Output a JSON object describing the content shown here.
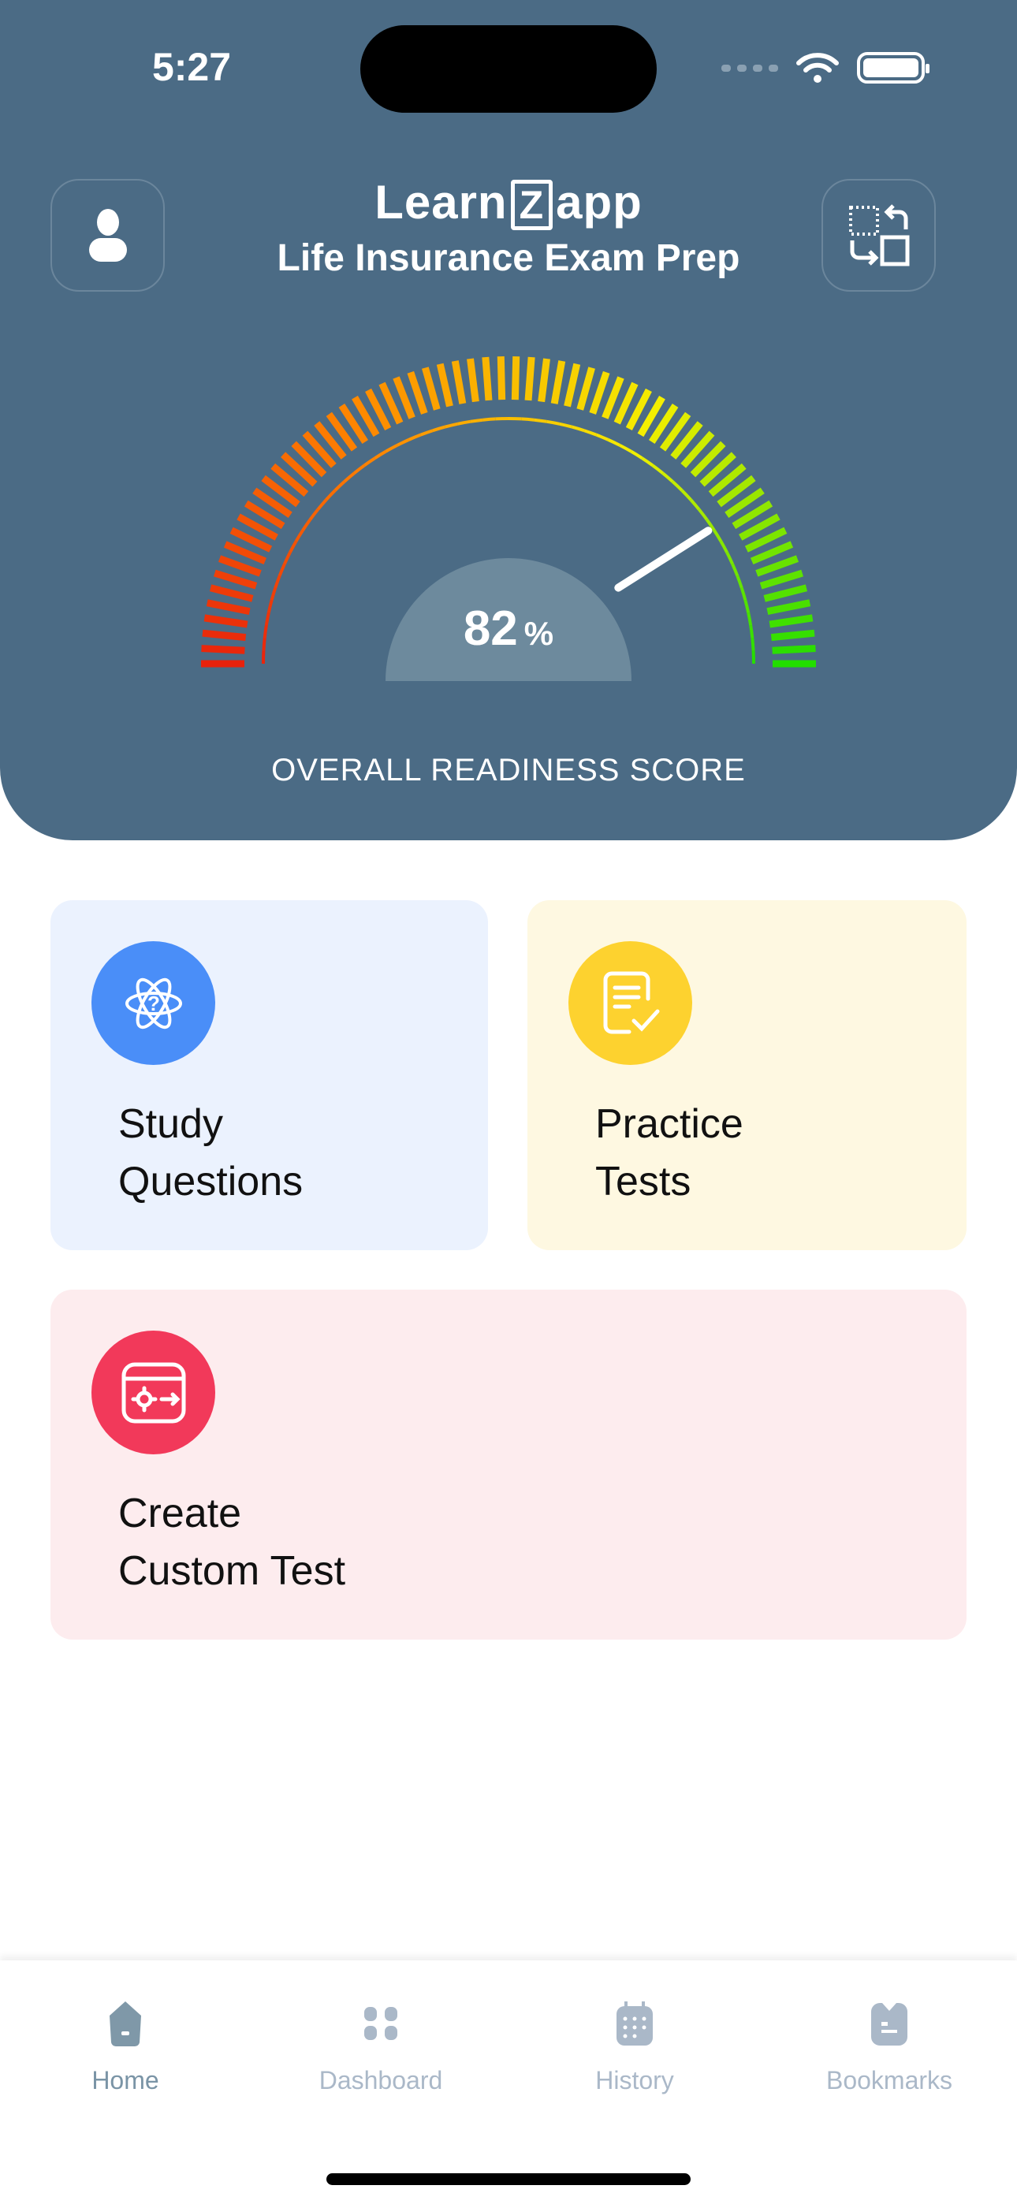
{
  "status_bar": {
    "time": "5:27"
  },
  "header": {
    "logo_text_left": "Learn",
    "logo_text_mid": "Z",
    "logo_text_right": "app",
    "subtitle": "Life Insurance Exam Prep",
    "profile_icon": "person-icon",
    "switch_icon": "switch-exam-icon",
    "bg_color": "#4b6b85"
  },
  "gauge": {
    "value": 82,
    "value_label": "82",
    "unit": "%",
    "caption": "OVERALL READINESS SCORE",
    "min": 0,
    "max": 100,
    "colors": [
      "#e8220c",
      "#ff8a00",
      "#f4ef00",
      "#22dd00"
    ]
  },
  "cards": [
    {
      "label_line1": "Study",
      "label_line2": "Questions",
      "icon": "atom-question-icon",
      "bg": "#ebf2fe",
      "icon_bg": "#4a8ef8"
    },
    {
      "label_line1": "Practice",
      "label_line2": "Tests",
      "icon": "checklist-document-icon",
      "bg": "#fef8e1",
      "icon_bg": "#fdd22f"
    },
    {
      "label_line1": "Create",
      "label_line2": "Custom Test",
      "icon": "custom-settings-icon",
      "bg": "#fdecee",
      "icon_bg": "#f2395a"
    }
  ],
  "tabs": [
    {
      "label": "Home",
      "icon": "home-icon",
      "active": true
    },
    {
      "label": "Dashboard",
      "icon": "dashboard-icon"
    },
    {
      "label": "History",
      "icon": "calendar-icon"
    },
    {
      "label": "Bookmarks",
      "icon": "bookmark-icon"
    }
  ]
}
